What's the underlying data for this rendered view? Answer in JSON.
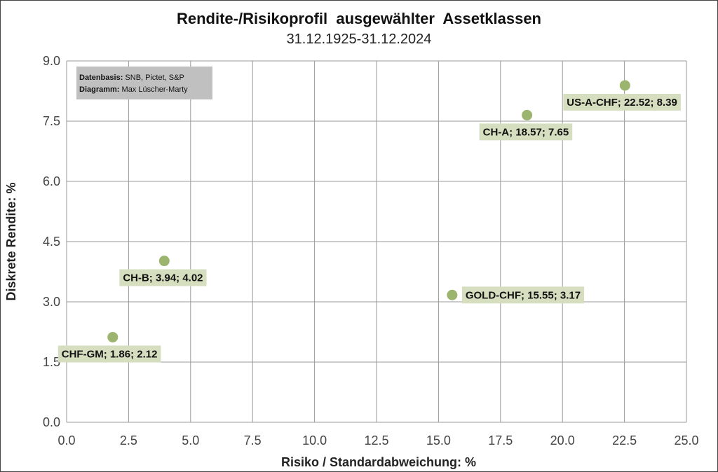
{
  "chart_data": {
    "type": "scatter",
    "title": "Rendite-/Risikoprofil  ausgewählter  Assetklassen",
    "subtitle": "31.12.1925-31.12.2024",
    "xlabel": "Risiko / Standardabweichung: %",
    "ylabel": "Diskrete Rendite: %",
    "xlim": [
      0,
      25
    ],
    "ylim": [
      0,
      9
    ],
    "x_ticks": [
      "0.0",
      "2.5",
      "5.0",
      "7.5",
      "10.0",
      "12.5",
      "15.0",
      "17.5",
      "20.0",
      "22.5",
      "25.0"
    ],
    "y_ticks": [
      "0.0",
      "1.5",
      "3.0",
      "4.5",
      "6.0",
      "7.5",
      "9.0"
    ],
    "grid": true,
    "marker_color": "#9bb56e",
    "label_bg_color": "#d5dfc0",
    "points": [
      {
        "label": "CHF-GM;  1.86; 2.12",
        "x": 1.86,
        "y": 2.12
      },
      {
        "label": "CH-B; 3.94; 4.02",
        "x": 3.94,
        "y": 4.02
      },
      {
        "label": "GOLD-CHF;  15.55; 3.17",
        "x": 15.55,
        "y": 3.17
      },
      {
        "label": "CH-A;  18.57; 7.65",
        "x": 18.57,
        "y": 7.65
      },
      {
        "label": "US-A-CHF; 22.52; 8.39",
        "x": 22.52,
        "y": 8.39
      }
    ],
    "annotation": {
      "line1_bold": "Datenbasis:",
      "line1_text": " SNB, Pictet, S&P",
      "line2_bold": "Diagramm:",
      "line2_text": " Max Lüscher-Marty",
      "bg_color": "#c0c0c0"
    }
  }
}
